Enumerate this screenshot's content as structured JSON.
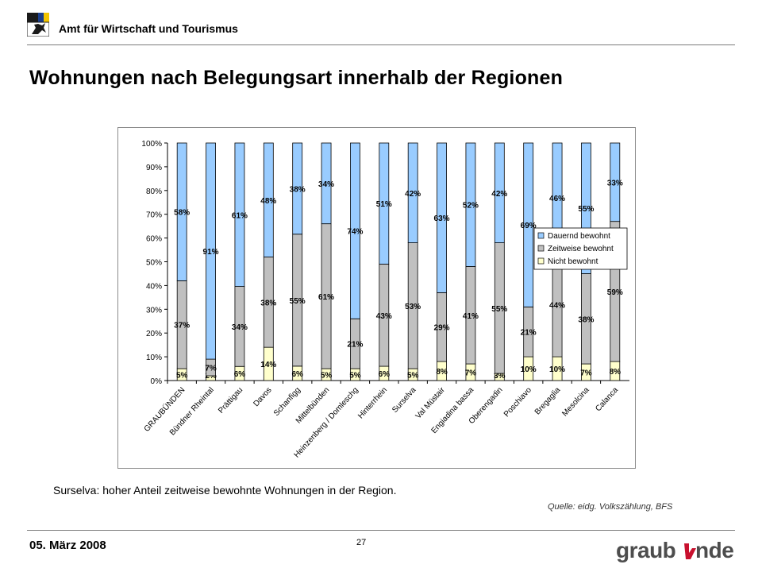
{
  "header": {
    "organization": "Amt für Wirtschaft und Tourismus",
    "icons": [
      "graubuenden-crest-icon"
    ]
  },
  "title": "Wohnungen nach Belegungsart innerhalb der Regionen",
  "caption": "Surselva: hoher Anteil zeitweise bewohnte Wohnungen in der Region.",
  "source": "Quelle: eidg. Volkszählung, BFS",
  "footer": {
    "date": "05. März 2008",
    "page": "27",
    "logo_text": "graubünden"
  },
  "colors": {
    "dauernd": "#99CCFF",
    "zeitweise": "#C0C0C0",
    "nicht": "#FFFFCC"
  },
  "chart_data": {
    "type": "bar",
    "stacked": true,
    "categories": [
      "GRAUBÜNDEN",
      "Bündner Rheintal",
      "Prättigau",
      "Davos",
      "Schanfigg",
      "Mittelbünden",
      "Heinzenberg / Domleschg",
      "Hinterrhein",
      "Surselva",
      "Val Müstair",
      "Engiadina bassa",
      "Oberengadin",
      "Poschiavo",
      "Bregaglia",
      "Mesolcina",
      "Calanca"
    ],
    "series": [
      {
        "name": "Nicht bewohnt",
        "values": [
          5,
          2,
          6,
          14,
          6,
          5,
          5,
          6,
          5,
          8,
          7,
          3,
          10,
          10,
          7,
          8
        ],
        "labels": [
          "5%",
          "2%",
          "6%",
          "14%",
          "6%",
          "5%",
          "5%",
          "6%",
          "5%",
          "8%",
          "7%",
          "3%",
          "10%",
          "10%",
          "7%",
          "8%"
        ]
      },
      {
        "name": "Zeitweise bewohnt",
        "values": [
          37,
          7,
          34,
          38,
          55,
          61,
          21,
          43,
          53,
          29,
          41,
          55,
          21,
          44,
          38,
          59
        ],
        "labels": [
          "37%",
          "7%",
          "34%",
          "38%",
          "55%",
          "61%",
          "21%",
          "43%",
          "53%",
          "29%",
          "41%",
          "55%",
          "21%",
          "44%",
          "38%",
          "59%"
        ]
      },
      {
        "name": "Dauernd bewohnt",
        "values": [
          58,
          91,
          61,
          48,
          38,
          34,
          74,
          51,
          42,
          63,
          52,
          42,
          69,
          46,
          55,
          33
        ],
        "labels": [
          "58%",
          "91%",
          "61%",
          "48%",
          "38%",
          "34%",
          "74%",
          "51%",
          "42%",
          "63%",
          "52%",
          "42%",
          "69%",
          "46%",
          "55%",
          "33%"
        ]
      }
    ],
    "legend": [
      "Dauernd bewohnt",
      "Zeitweise bewohnt",
      "Nicht bewohnt"
    ],
    "yticks": [
      "0%",
      "10%",
      "20%",
      "30%",
      "40%",
      "50%",
      "60%",
      "70%",
      "80%",
      "90%",
      "100%"
    ],
    "ylim": [
      0,
      100
    ],
    "legend_position": "right",
    "grid": false
  }
}
